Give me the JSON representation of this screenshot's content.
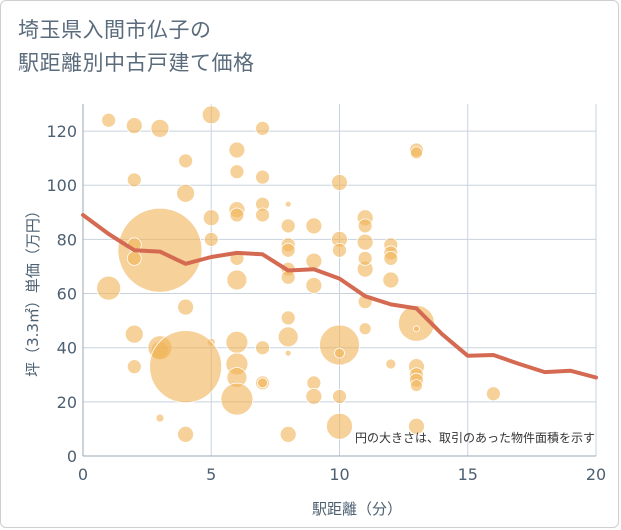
{
  "chart_data": {
    "type": "scatter",
    "title": "埼玉県入間市仏子の\n駅距離別中古戸建て価格",
    "xlabel": "駅距離（分）",
    "ylabel": "坪（3.3㎡）単価（万円）",
    "xlim": [
      0,
      20
    ],
    "ylim": [
      0,
      130
    ],
    "xticks": [
      0,
      5,
      10,
      15,
      20
    ],
    "yticks": [
      0,
      20,
      40,
      60,
      80,
      100,
      120
    ],
    "grid": true,
    "annotation": "円の大きさは、取引のあった物件面積を示す",
    "colors": {
      "bubble": "#f0b45a",
      "line": "#d46a52",
      "grid": "#c8d3de"
    },
    "bubbles": [
      {
        "x": 1,
        "y": 124,
        "r": 7
      },
      {
        "x": 2,
        "y": 122,
        "r": 8
      },
      {
        "x": 3,
        "y": 121,
        "r": 9
      },
      {
        "x": 5,
        "y": 126,
        "r": 9
      },
      {
        "x": 7,
        "y": 121,
        "r": 7
      },
      {
        "x": 4,
        "y": 109,
        "r": 7
      },
      {
        "x": 6,
        "y": 113,
        "r": 8
      },
      {
        "x": 6,
        "y": 105,
        "r": 7
      },
      {
        "x": 7,
        "y": 103,
        "r": 7
      },
      {
        "x": 2,
        "y": 102,
        "r": 7
      },
      {
        "x": 4,
        "y": 97,
        "r": 9
      },
      {
        "x": 10,
        "y": 101,
        "r": 8
      },
      {
        "x": 13,
        "y": 113,
        "r": 7
      },
      {
        "x": 13,
        "y": 112,
        "r": 6
      },
      {
        "x": 8,
        "y": 93,
        "r": 3
      },
      {
        "x": 5,
        "y": 88,
        "r": 8
      },
      {
        "x": 6,
        "y": 91,
        "r": 8
      },
      {
        "x": 6,
        "y": 89,
        "r": 7
      },
      {
        "x": 7,
        "y": 93,
        "r": 7
      },
      {
        "x": 7,
        "y": 89,
        "r": 7
      },
      {
        "x": 8,
        "y": 85,
        "r": 7
      },
      {
        "x": 9,
        "y": 85,
        "r": 8
      },
      {
        "x": 11,
        "y": 88,
        "r": 8
      },
      {
        "x": 11,
        "y": 85,
        "r": 7
      },
      {
        "x": 5,
        "y": 80,
        "r": 7
      },
      {
        "x": 8,
        "y": 78,
        "r": 7
      },
      {
        "x": 8,
        "y": 76,
        "r": 7
      },
      {
        "x": 10,
        "y": 80,
        "r": 8
      },
      {
        "x": 10,
        "y": 76,
        "r": 7
      },
      {
        "x": 11,
        "y": 79,
        "r": 8
      },
      {
        "x": 12,
        "y": 78,
        "r": 7
      },
      {
        "x": 12,
        "y": 75,
        "r": 7
      },
      {
        "x": 12,
        "y": 73,
        "r": 7
      },
      {
        "x": 3,
        "y": 76,
        "r": 42
      },
      {
        "x": 2,
        "y": 78,
        "r": 7
      },
      {
        "x": 2,
        "y": 73,
        "r": 7
      },
      {
        "x": 6,
        "y": 73,
        "r": 7
      },
      {
        "x": 8,
        "y": 69,
        "r": 7
      },
      {
        "x": 8,
        "y": 66,
        "r": 7
      },
      {
        "x": 9,
        "y": 72,
        "r": 8
      },
      {
        "x": 11,
        "y": 69,
        "r": 8
      },
      {
        "x": 11,
        "y": 73,
        "r": 7
      },
      {
        "x": 12,
        "y": 65,
        "r": 8
      },
      {
        "x": 1,
        "y": 62,
        "r": 12
      },
      {
        "x": 6,
        "y": 65,
        "r": 10
      },
      {
        "x": 9,
        "y": 63,
        "r": 8
      },
      {
        "x": 4,
        "y": 55,
        "r": 8
      },
      {
        "x": 8,
        "y": 51,
        "r": 7
      },
      {
        "x": 11,
        "y": 57,
        "r": 7
      },
      {
        "x": 13,
        "y": 49,
        "r": 18
      },
      {
        "x": 13,
        "y": 47,
        "r": 3
      },
      {
        "x": 2,
        "y": 45,
        "r": 9
      },
      {
        "x": 3,
        "y": 39,
        "r": 9
      },
      {
        "x": 3,
        "y": 40,
        "r": 12
      },
      {
        "x": 5,
        "y": 42,
        "r": 4
      },
      {
        "x": 6,
        "y": 42,
        "r": 11
      },
      {
        "x": 7,
        "y": 40,
        "r": 7
      },
      {
        "x": 8,
        "y": 44,
        "r": 10
      },
      {
        "x": 8,
        "y": 38,
        "r": 3
      },
      {
        "x": 10,
        "y": 41,
        "r": 20
      },
      {
        "x": 10,
        "y": 38,
        "r": 5
      },
      {
        "x": 11,
        "y": 47,
        "r": 6
      },
      {
        "x": 4,
        "y": 33,
        "r": 36
      },
      {
        "x": 2,
        "y": 33,
        "r": 7
      },
      {
        "x": 6,
        "y": 34,
        "r": 11
      },
      {
        "x": 6,
        "y": 29,
        "r": 10
      },
      {
        "x": 7,
        "y": 27,
        "r": 7
      },
      {
        "x": 7,
        "y": 27,
        "r": 5
      },
      {
        "x": 9,
        "y": 27,
        "r": 7
      },
      {
        "x": 9,
        "y": 22,
        "r": 8
      },
      {
        "x": 6,
        "y": 21,
        "r": 16
      },
      {
        "x": 10,
        "y": 22,
        "r": 7
      },
      {
        "x": 12,
        "y": 34,
        "r": 5
      },
      {
        "x": 13,
        "y": 33,
        "r": 8
      },
      {
        "x": 13,
        "y": 30,
        "r": 7
      },
      {
        "x": 13,
        "y": 28,
        "r": 7
      },
      {
        "x": 13,
        "y": 26,
        "r": 6
      },
      {
        "x": 16,
        "y": 23,
        "r": 7
      },
      {
        "x": 3,
        "y": 14,
        "r": 4
      },
      {
        "x": 10,
        "y": 11,
        "r": 13
      },
      {
        "x": 13,
        "y": 11,
        "r": 8
      },
      {
        "x": 4,
        "y": 8,
        "r": 8
      },
      {
        "x": 8,
        "y": 8,
        "r": 8
      }
    ],
    "series": [
      {
        "type": "line",
        "x": [
          0,
          1,
          2,
          3,
          4,
          5,
          6,
          7,
          8,
          9,
          10,
          11,
          12,
          13,
          14,
          15,
          16,
          17,
          18,
          19,
          20
        ],
        "y": [
          89,
          82,
          76,
          75.5,
          71,
          73.5,
          75,
          74.5,
          68.5,
          69,
          65.5,
          59,
          56,
          54.5,
          45,
          37,
          37.3,
          34,
          31,
          31.5,
          29
        ]
      }
    ]
  }
}
